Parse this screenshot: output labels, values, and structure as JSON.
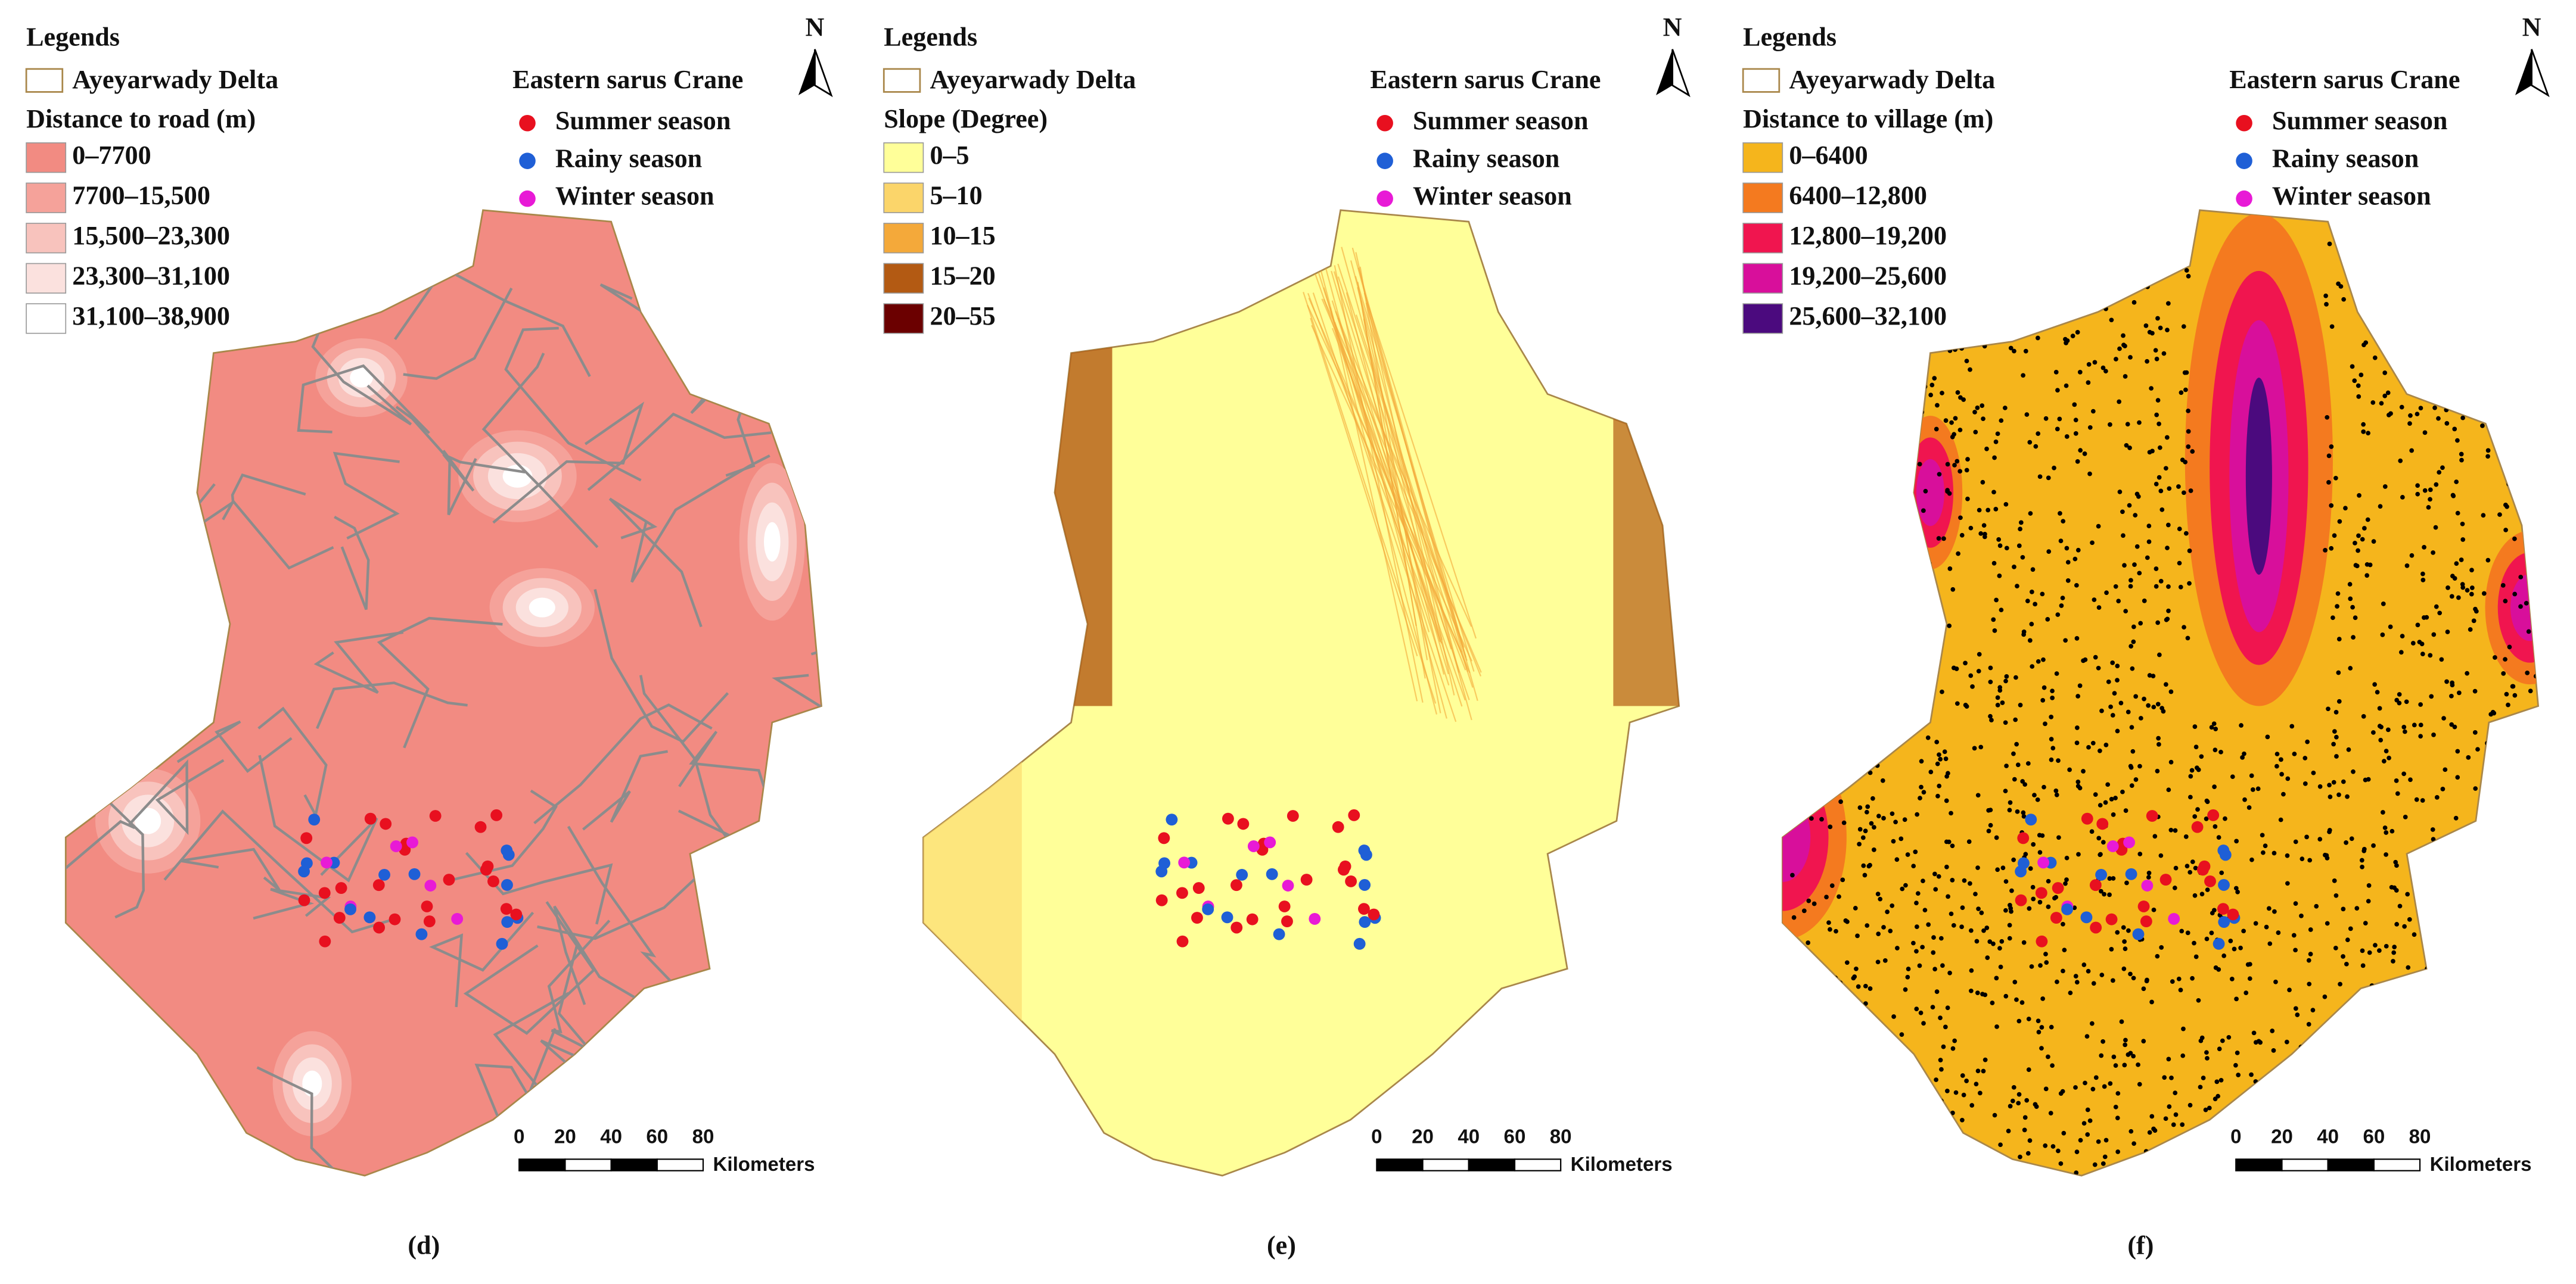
{
  "panels": [
    {
      "label": "(d)",
      "legend_title": "Legends",
      "layer": "Ayeyarwady Delta",
      "variable": "Distance to road (m)",
      "classes": [
        {
          "label": "0–7700",
          "color": "#f28b82"
        },
        {
          "label": "7700–15,500",
          "color": "#f5a29a"
        },
        {
          "label": "15,500–23,300",
          "color": "#f8c3bd"
        },
        {
          "label": "23,300–31,100",
          "color": "#fbe1de"
        },
        {
          "label": "31,100–38,900",
          "color": "#ffffff"
        }
      ],
      "species": "Eastern sarus Crane",
      "seasons": [
        {
          "name": "Summer season",
          "color": "#e8101f"
        },
        {
          "name": "Rainy season",
          "color": "#1f5fd6"
        },
        {
          "name": "Winter season",
          "color": "#e81ad6"
        }
      ],
      "north": "N",
      "scale_ticks": [
        0,
        20,
        40,
        60,
        80
      ],
      "scale_unit": "Kilometers"
    },
    {
      "label": "(e)",
      "legend_title": "Legends",
      "layer": "Ayeyarwady Delta",
      "variable": "Slope (Degree)",
      "classes": [
        {
          "label": "0–5",
          "color": "#ffff99"
        },
        {
          "label": "5–10",
          "color": "#fbd56a"
        },
        {
          "label": "10–15",
          "color": "#f4a93a"
        },
        {
          "label": "15–20",
          "color": "#b35a13"
        },
        {
          "label": "20–55",
          "color": "#6b0000"
        }
      ],
      "species": "Eastern sarus Crane",
      "seasons": [
        {
          "name": "Summer season",
          "color": "#e8101f"
        },
        {
          "name": "Rainy season",
          "color": "#1f5fd6"
        },
        {
          "name": "Winter season",
          "color": "#e81ad6"
        }
      ],
      "north": "N",
      "scale_ticks": [
        0,
        20,
        40,
        60,
        80
      ],
      "scale_unit": "Kilometers"
    },
    {
      "label": "(f)",
      "legend_title": "Legends",
      "layer": "Ayeyarwady Delta",
      "variable": "Distance to village (m)",
      "classes": [
        {
          "label": "0–6400",
          "color": "#f5b51c"
        },
        {
          "label": "6400–12,800",
          "color": "#f47a1f"
        },
        {
          "label": "12,800–19,200",
          "color": "#f0154f"
        },
        {
          "label": "19,200–25,600",
          "color": "#d80f9b"
        },
        {
          "label": "25,600–32,100",
          "color": "#4b0a7e"
        }
      ],
      "species": "Eastern sarus Crane",
      "seasons": [
        {
          "name": "Summer season",
          "color": "#e8101f"
        },
        {
          "name": "Rainy season",
          "color": "#1f5fd6"
        },
        {
          "name": "Winter season",
          "color": "#e81ad6"
        }
      ],
      "north": "N",
      "scale_ticks": [
        0,
        20,
        40,
        60,
        80
      ],
      "scale_unit": "Kilometers"
    }
  ]
}
